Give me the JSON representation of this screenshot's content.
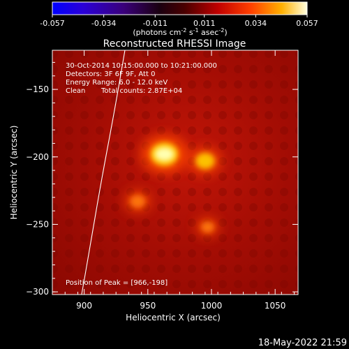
{
  "colorbar": {
    "tick_labels": [
      "-0.057",
      "-0.034",
      "-0.011",
      "0.011",
      "0.034",
      "0.057"
    ],
    "range": [
      -0.057,
      0.057
    ],
    "units_main": "(photons cm",
    "units_sup1": "-2",
    "units_mid": " s",
    "units_sup2": "-1",
    "units_end": " asec",
    "units_sup3": "-2",
    "units_close": ")"
  },
  "chart_data": {
    "type": "heatmap",
    "title": "Reconstructed RHESSI Image",
    "xlabel": "Heliocentric X (arcsec)",
    "ylabel": "Heliocentric Y (arcsec)",
    "xlim": [
      875,
      1068
    ],
    "ylim": [
      -302,
      -121
    ],
    "x_ticks": [
      900,
      950,
      1000,
      1050
    ],
    "y_ticks": [
      -150,
      -200,
      -250,
      -300
    ],
    "x_tick_labels": [
      "900",
      "950",
      "1000",
      "1050"
    ],
    "y_tick_labels": [
      "−150",
      "−200",
      "−250",
      "−300"
    ],
    "sources": [
      {
        "x": 963,
        "y": -198,
        "relative_intensity": 1.0
      },
      {
        "x": 995,
        "y": -203,
        "relative_intensity": 0.55
      },
      {
        "x": 942,
        "y": -233,
        "relative_intensity": 0.35
      },
      {
        "x": 997,
        "y": -252,
        "relative_intensity": 0.25
      }
    ],
    "peak": {
      "x": 966,
      "y": -198
    },
    "limb_curve": [
      [
        932,
        -121
      ],
      [
        924,
        -165
      ],
      [
        913,
        -220
      ],
      [
        904,
        -270
      ],
      [
        898,
        -302
      ]
    ]
  },
  "info": {
    "line1": "30-Oct-2014 10:15:00.000 to 10:21:00.000",
    "line2": "Detectors: 3F 6F 9F, Att 0",
    "line3": "Energy Range: 6.0 - 12.0 keV",
    "line4_a": "Clean",
    "line4_b": "Total counts: 2.87E+04",
    "peak_text": "Position of Peak = [966,-198]"
  },
  "timestamp": "18-May-2022 21:59"
}
